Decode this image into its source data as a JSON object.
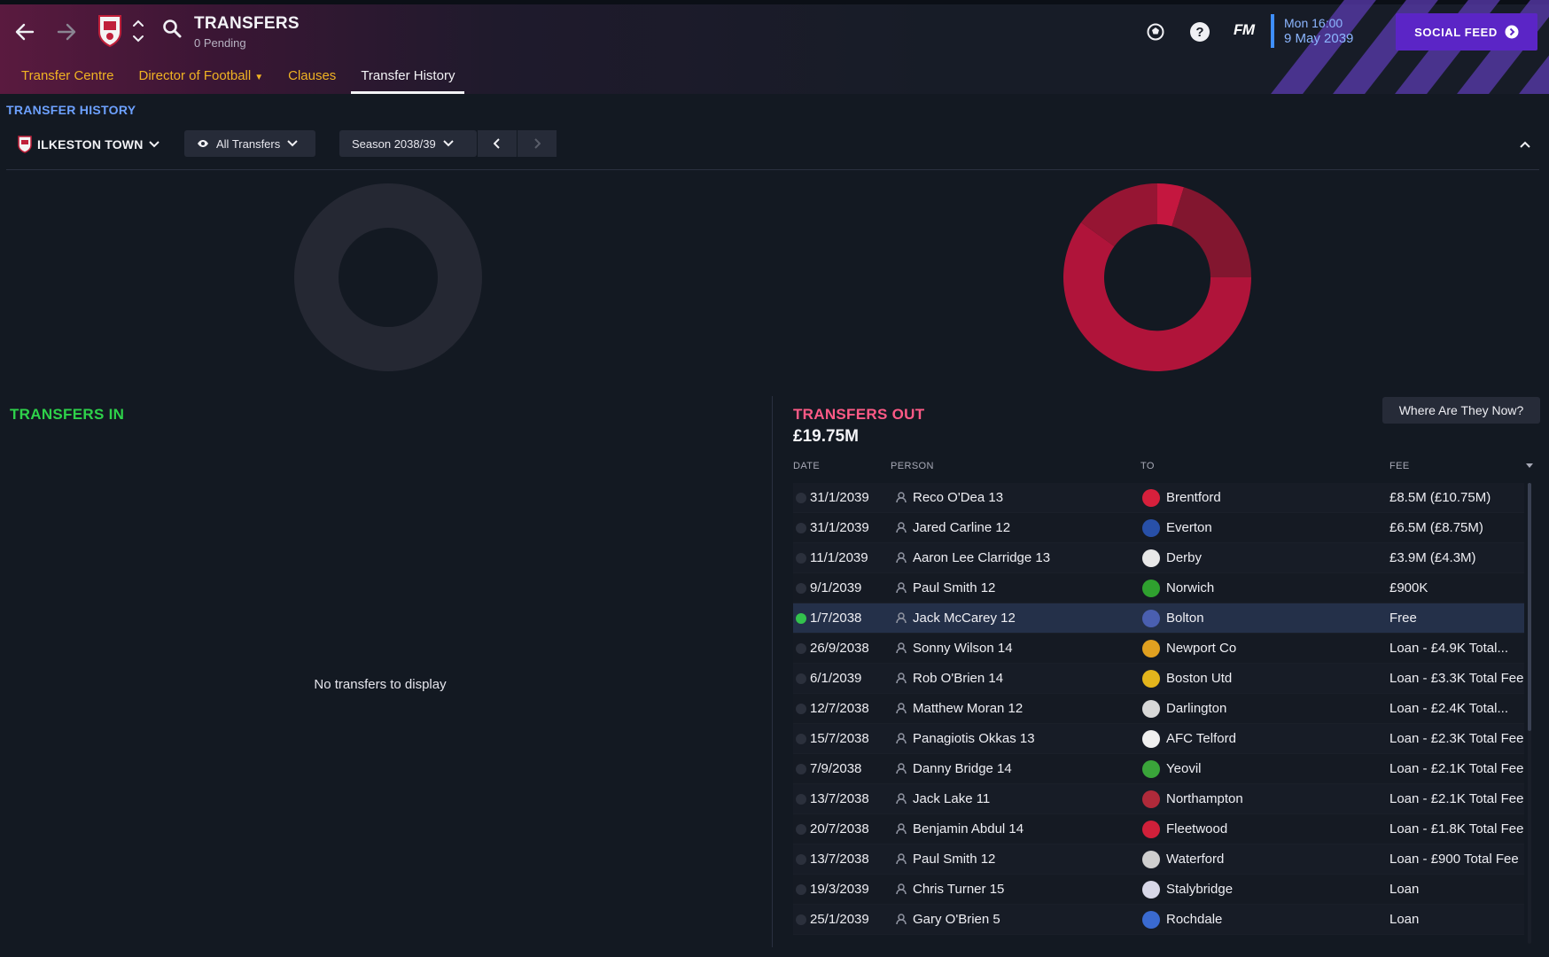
{
  "header": {
    "title": "TRANSFERS",
    "subtitle": "0 Pending",
    "fm_label": "FM",
    "date_time": "Mon 16:00",
    "date_day": "9 May 2039",
    "social_label": "SOCIAL FEED",
    "tabs": [
      {
        "label": "Transfer Centre",
        "active": false
      },
      {
        "label": "Director of Football",
        "active": false,
        "has_menu": true
      },
      {
        "label": "Clauses",
        "active": false
      },
      {
        "label": "Transfer History",
        "active": true
      }
    ]
  },
  "toolbar": {
    "section_label": "TRANSFER HISTORY",
    "club": "ILKESTON TOWN",
    "filter": "All Transfers",
    "season": "Season 2038/39"
  },
  "transfers_in": {
    "title": "TRANSFERS IN",
    "empty_text": "No transfers to display"
  },
  "transfers_out": {
    "title": "TRANSFERS OUT",
    "total": "£19.75M",
    "where_button": "Where Are They Now?",
    "columns": [
      "DATE",
      "PERSON",
      "TO",
      "FEE"
    ],
    "rows": [
      {
        "date": "31/1/2039",
        "person": "Reco O'Dea 13",
        "to": "Brentford",
        "fee": "£8.5M (£10.75M)",
        "club_color": "#d6203c"
      },
      {
        "date": "31/1/2039",
        "person": "Jared Carline 12",
        "to": "Everton",
        "fee": "£6.5M (£8.75M)",
        "club_color": "#2850a8"
      },
      {
        "date": "11/1/2039",
        "person": "Aaron Lee Clarridge 13",
        "to": "Derby",
        "fee": "£3.9M (£4.3M)",
        "club_color": "#e8e8e8"
      },
      {
        "date": "9/1/2039",
        "person": "Paul Smith 12",
        "to": "Norwich",
        "fee": "£900K",
        "club_color": "#2fa12f"
      },
      {
        "date": "1/7/2038",
        "person": "Jack McCarey 12",
        "to": "Bolton",
        "fee": "Free",
        "club_color": "#4a5fb0",
        "selected": true
      },
      {
        "date": "26/9/2038",
        "person": "Sonny Wilson 14",
        "to": "Newport Co",
        "fee": "Loan - £4.9K Total...",
        "club_color": "#e0a020"
      },
      {
        "date": "6/1/2039",
        "person": "Rob O'Brien 14",
        "to": "Boston Utd",
        "fee": "Loan - £3.3K Total Fee",
        "club_color": "#e3b51c"
      },
      {
        "date": "12/7/2038",
        "person": "Matthew Moran 12",
        "to": "Darlington",
        "fee": "Loan - £2.4K Total...",
        "club_color": "#d8d8d8"
      },
      {
        "date": "15/7/2038",
        "person": "Panagiotis Okkas 13",
        "to": "AFC Telford",
        "fee": "Loan - £2.3K Total Fee",
        "club_color": "#f0f0f0"
      },
      {
        "date": "7/9/2038",
        "person": "Danny Bridge 14",
        "to": "Yeovil",
        "fee": "Loan - £2.1K Total Fee",
        "club_color": "#3aa53a"
      },
      {
        "date": "13/7/2038",
        "person": "Jack Lake 11",
        "to": "Northampton",
        "fee": "Loan - £2.1K Total Fee",
        "club_color": "#b02a3a"
      },
      {
        "date": "20/7/2038",
        "person": "Benjamin Abdul 14",
        "to": "Fleetwood",
        "fee": "Loan - £1.8K Total Fee",
        "club_color": "#d0203a"
      },
      {
        "date": "13/7/2038",
        "person": "Paul Smith 12",
        "to": "Waterford",
        "fee": "Loan - £900 Total Fee",
        "club_color": "#cfcfcf"
      },
      {
        "date": "19/3/2039",
        "person": "Chris Turner 15",
        "to": "Stalybridge",
        "fee": "Loan",
        "club_color": "#d8d8e8"
      },
      {
        "date": "25/1/2039",
        "person": "Gary O'Brien 5",
        "to": "Rochdale",
        "fee": "Loan",
        "club_color": "#3a6ad0"
      }
    ]
  },
  "colors": {
    "accent_in": "#2ed24a",
    "accent_out": "#ff5a86",
    "tab_link": "#f0b323",
    "section": "#6da1ff",
    "social_bg": "#5b25c6"
  }
}
